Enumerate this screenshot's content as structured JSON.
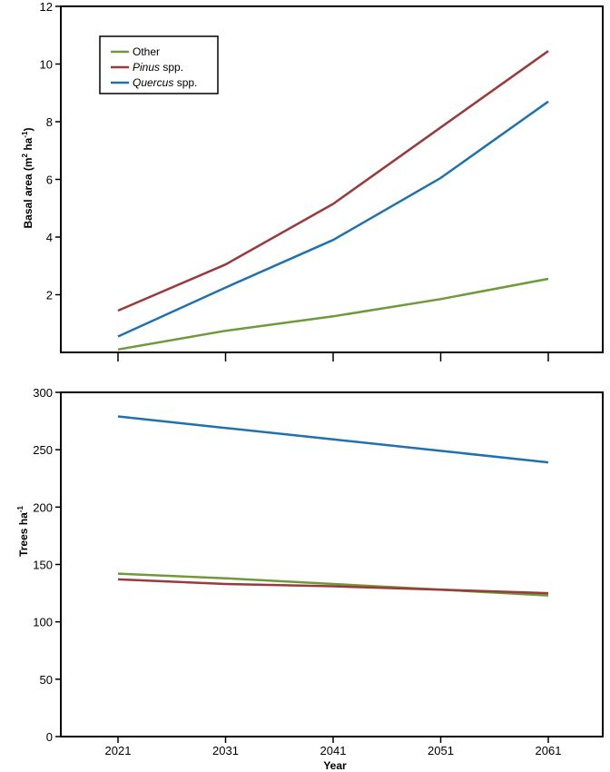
{
  "colors": {
    "other": "#6e9a3a",
    "pinus": "#9a3a3a",
    "quercus": "#1f72ae"
  },
  "chart_data": [
    {
      "type": "line",
      "x": [
        2021,
        2031,
        2041,
        2051,
        2061
      ],
      "ylabel": {
        "main": "Basal area (m",
        "sup1": "2",
        "mid": " ha",
        "sup2": "-1",
        "end": ")"
      },
      "ylim": [
        0,
        12
      ],
      "yticks": [
        2,
        4,
        6,
        8,
        10,
        12
      ],
      "series": [
        {
          "key": "other",
          "name": "Other",
          "values": [
            0.1,
            0.75,
            1.25,
            1.85,
            2.55
          ]
        },
        {
          "key": "pinus",
          "name": "Pinus",
          "suffix": " spp.",
          "values": [
            1.45,
            3.05,
            5.15,
            7.8,
            10.45
          ]
        },
        {
          "key": "quercus",
          "name": "Quercus",
          "suffix": " spp.",
          "values": [
            0.55,
            2.25,
            3.9,
            6.05,
            8.7
          ]
        }
      ],
      "legend": "top-left"
    },
    {
      "type": "line",
      "x": [
        2021,
        2031,
        2041,
        2051,
        2061
      ],
      "xticklabels": [
        "2021",
        "2031",
        "2041",
        "2051",
        "2061"
      ],
      "xlabel": "Year",
      "ylabel": {
        "main": "Trees ha",
        "sup": "-1"
      },
      "ylim": [
        0,
        300
      ],
      "yticks": [
        0,
        50,
        100,
        150,
        200,
        250,
        300
      ],
      "series": [
        {
          "key": "other",
          "values": [
            142,
            138,
            133,
            128,
            123
          ]
        },
        {
          "key": "pinus",
          "values": [
            137,
            133,
            131,
            128,
            125
          ]
        },
        {
          "key": "quercus",
          "values": [
            279,
            269,
            259,
            249,
            239
          ]
        }
      ]
    }
  ]
}
